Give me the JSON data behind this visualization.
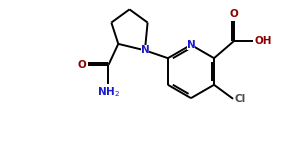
{
  "bg_color": "#ffffff",
  "line_color": "#000000",
  "N_color": "#1a1acd",
  "O_color": "#8b0000",
  "Cl_color": "#4b4b4b",
  "line_width": 1.4,
  "figsize": [
    2.81,
    1.43
  ],
  "dpi": 100,
  "xlim": [
    0,
    10
  ],
  "ylim": [
    0,
    5.1
  ]
}
